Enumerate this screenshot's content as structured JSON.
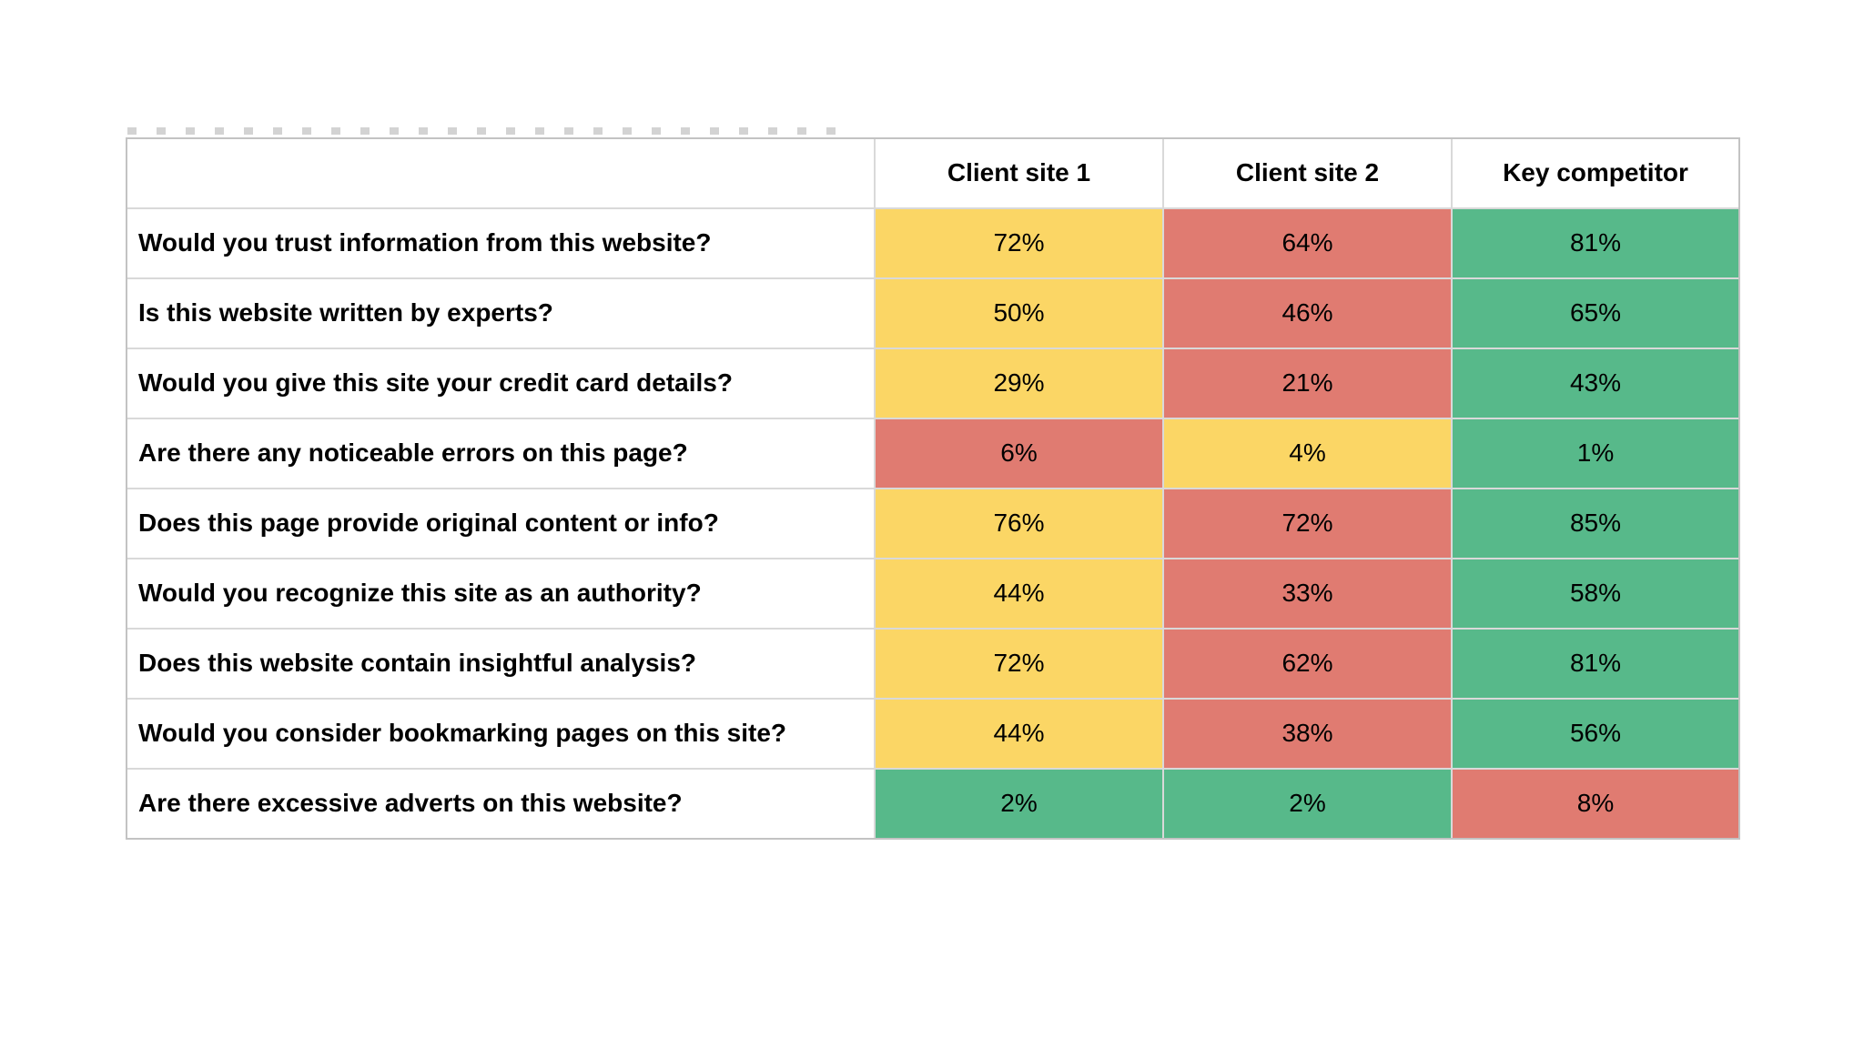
{
  "colors": {
    "yellow": "#FBD665",
    "red": "#E07B71",
    "green": "#57B98A",
    "grid_line": "#d9d9d9",
    "outer_border": "#c3c3c3",
    "text": "#000000"
  },
  "table": {
    "corner_label": "",
    "headers": [
      "Client site 1",
      "Client site 2",
      "Key competitor"
    ],
    "rows": [
      {
        "question": "Would you trust information from this website?",
        "cells": [
          {
            "value": "72%",
            "color": "yellow"
          },
          {
            "value": "64%",
            "color": "red"
          },
          {
            "value": "81%",
            "color": "green"
          }
        ]
      },
      {
        "question": "Is this website written by experts?",
        "cells": [
          {
            "value": "50%",
            "color": "yellow"
          },
          {
            "value": "46%",
            "color": "red"
          },
          {
            "value": "65%",
            "color": "green"
          }
        ]
      },
      {
        "question": "Would you give this site your credit card details?",
        "cells": [
          {
            "value": "29%",
            "color": "yellow"
          },
          {
            "value": "21%",
            "color": "red"
          },
          {
            "value": "43%",
            "color": "green"
          }
        ]
      },
      {
        "question": "Are there any noticeable errors on this page?",
        "cells": [
          {
            "value": "6%",
            "color": "red"
          },
          {
            "value": "4%",
            "color": "yellow"
          },
          {
            "value": "1%",
            "color": "green"
          }
        ]
      },
      {
        "question": "Does this page provide original content or info?",
        "cells": [
          {
            "value": "76%",
            "color": "yellow"
          },
          {
            "value": "72%",
            "color": "red"
          },
          {
            "value": "85%",
            "color": "green"
          }
        ]
      },
      {
        "question": "Would you recognize this site as an authority?",
        "cells": [
          {
            "value": "44%",
            "color": "yellow"
          },
          {
            "value": "33%",
            "color": "red"
          },
          {
            "value": "58%",
            "color": "green"
          }
        ]
      },
      {
        "question": "Does this website contain insightful analysis?",
        "cells": [
          {
            "value": "72%",
            "color": "yellow"
          },
          {
            "value": "62%",
            "color": "red"
          },
          {
            "value": "81%",
            "color": "green"
          }
        ]
      },
      {
        "question": "Would you consider bookmarking pages on this site?",
        "cells": [
          {
            "value": "44%",
            "color": "yellow"
          },
          {
            "value": "38%",
            "color": "red"
          },
          {
            "value": "56%",
            "color": "green"
          }
        ]
      },
      {
        "question": "Are there excessive adverts on this website?",
        "cells": [
          {
            "value": "2%",
            "color": "green"
          },
          {
            "value": "2%",
            "color": "green"
          },
          {
            "value": "8%",
            "color": "red"
          }
        ]
      }
    ]
  },
  "chart_data": {
    "type": "table",
    "title": "",
    "categories": [
      "Would you trust information from this website?",
      "Is this website written by experts?",
      "Would you give this site your credit card details?",
      "Are there any noticeable errors on this page?",
      "Does this page provide original content or info?",
      "Would you recognize this site as an authority?",
      "Does this website contain insightful analysis?",
      "Would you consider bookmarking pages on this site?",
      "Are there excessive adverts on this website?"
    ],
    "series": [
      {
        "name": "Client site 1",
        "values": [
          72,
          50,
          29,
          6,
          76,
          44,
          72,
          44,
          2
        ],
        "cell_colors": [
          "yellow",
          "yellow",
          "yellow",
          "red",
          "yellow",
          "yellow",
          "yellow",
          "yellow",
          "green"
        ]
      },
      {
        "name": "Client site 2",
        "values": [
          64,
          46,
          21,
          4,
          72,
          33,
          62,
          38,
          2
        ],
        "cell_colors": [
          "red",
          "red",
          "red",
          "yellow",
          "red",
          "red",
          "red",
          "red",
          "green"
        ]
      },
      {
        "name": "Key competitor",
        "values": [
          81,
          65,
          43,
          1,
          85,
          58,
          81,
          56,
          8
        ],
        "cell_colors": [
          "green",
          "green",
          "green",
          "green",
          "green",
          "green",
          "green",
          "green",
          "red"
        ]
      }
    ],
    "value_format": "percent",
    "legend_position": "none",
    "color_encoding": "green = best in row, yellow = middle, red = worst in row"
  }
}
